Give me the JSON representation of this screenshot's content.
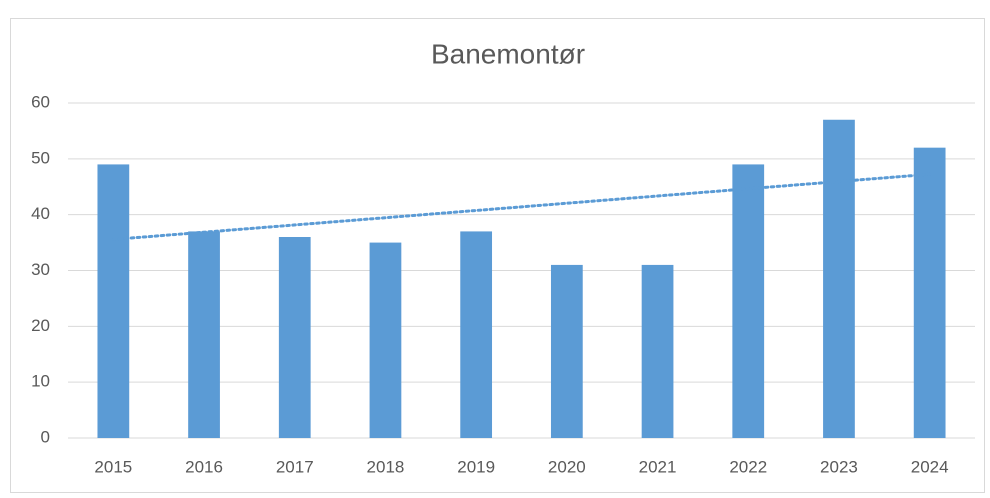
{
  "chart_data": {
    "type": "bar",
    "title": "Banemontør",
    "categories": [
      "2015",
      "2016",
      "2017",
      "2018",
      "2019",
      "2020",
      "2021",
      "2022",
      "2023",
      "2024"
    ],
    "values": [
      49,
      37,
      36,
      35,
      37,
      31,
      31,
      49,
      57,
      52
    ],
    "color": "#5b9bd5",
    "ylim": [
      0,
      60
    ],
    "yticks": [
      0,
      10,
      20,
      30,
      40,
      50,
      60
    ],
    "grid": true,
    "trendline": "linear"
  }
}
